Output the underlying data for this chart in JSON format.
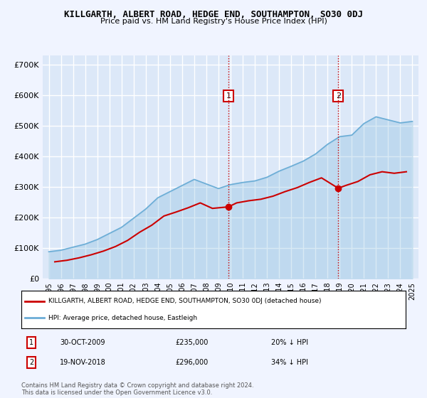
{
  "title": "KILLGARTH, ALBERT ROAD, HEDGE END, SOUTHAMPTON, SO30 0DJ",
  "subtitle": "Price paid vs. HM Land Registry's House Price Index (HPI)",
  "ylabel_ticks": [
    "£0",
    "£100K",
    "£200K",
    "£300K",
    "£400K",
    "£500K",
    "£600K",
    "£700K"
  ],
  "ytick_values": [
    0,
    100000,
    200000,
    300000,
    400000,
    500000,
    600000,
    700000
  ],
  "ylim": [
    0,
    730000
  ],
  "background_color": "#f0f4ff",
  "plot_bg_color": "#dce8f8",
  "grid_color": "#ffffff",
  "hpi_color": "#6badd6",
  "price_color": "#cc0000",
  "transaction1": {
    "year": 2009.83,
    "price": 235000,
    "label": "1",
    "date": "30-OCT-2009",
    "pct": "20% ↓ HPI"
  },
  "transaction2": {
    "year": 2018.88,
    "price": 296000,
    "label": "2",
    "date": "19-NOV-2018",
    "pct": "34% ↓ HPI"
  },
  "vline1_x": 2009.83,
  "vline2_x": 2018.88,
  "hpi_years": [
    1995,
    1996,
    1997,
    1998,
    1999,
    2000,
    2001,
    2002,
    2003,
    2004,
    2005,
    2006,
    2007,
    2008,
    2009,
    2010,
    2011,
    2012,
    2013,
    2014,
    2015,
    2016,
    2017,
    2018,
    2019,
    2020,
    2021,
    2022,
    2023,
    2024,
    2025
  ],
  "hpi_values": [
    88000,
    93000,
    103000,
    113000,
    128000,
    148000,
    168000,
    198000,
    228000,
    265000,
    285000,
    305000,
    325000,
    310000,
    295000,
    308000,
    315000,
    320000,
    332000,
    352000,
    368000,
    385000,
    408000,
    440000,
    465000,
    470000,
    508000,
    530000,
    520000,
    510000,
    515000
  ],
  "price_years": [
    1995.5,
    1996.5,
    1997.5,
    1998.5,
    1999.5,
    2000.5,
    2001.5,
    2002.5,
    2003.5,
    2004.5,
    2005.5,
    2006.5,
    2007.5,
    2008.5,
    2009.83,
    2010.5,
    2011.5,
    2012.5,
    2013.5,
    2014.5,
    2015.5,
    2016.5,
    2017.5,
    2018.88,
    2019.5,
    2020.5,
    2021.5,
    2022.5,
    2023.5,
    2024.5
  ],
  "price_values": [
    55000,
    60000,
    68000,
    78000,
    90000,
    105000,
    125000,
    152000,
    175000,
    205000,
    218000,
    232000,
    248000,
    230000,
    235000,
    248000,
    255000,
    260000,
    270000,
    285000,
    298000,
    315000,
    330000,
    296000,
    305000,
    318000,
    340000,
    350000,
    345000,
    350000
  ],
  "legend_label_red": "KILLGARTH, ALBERT ROAD, HEDGE END, SOUTHAMPTON, SO30 0DJ (detached house)",
  "legend_label_blue": "HPI: Average price, detached house, Eastleigh",
  "footer": "Contains HM Land Registry data © Crown copyright and database right 2024.\nThis data is licensed under the Open Government Licence v3.0.",
  "xtick_years": [
    1995,
    1996,
    1997,
    1998,
    1999,
    2000,
    2001,
    2002,
    2003,
    2004,
    2005,
    2006,
    2007,
    2008,
    2009,
    2010,
    2011,
    2012,
    2013,
    2014,
    2015,
    2016,
    2017,
    2018,
    2019,
    2020,
    2021,
    2022,
    2023,
    2024,
    2025
  ]
}
